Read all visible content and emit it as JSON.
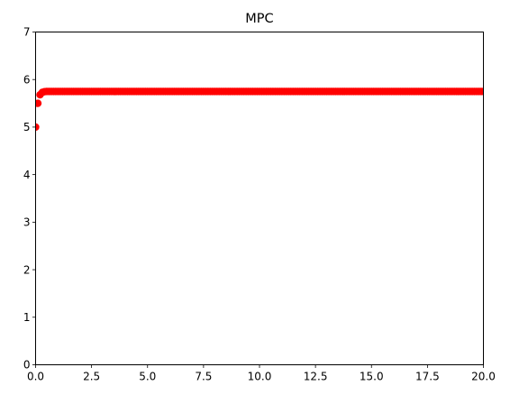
{
  "chart_data": {
    "type": "scatter",
    "title": "MPC",
    "xlabel": "",
    "ylabel": "",
    "xlim": [
      0,
      20
    ],
    "ylim": [
      0,
      7
    ],
    "x_ticks": [
      "0.0",
      "2.5",
      "5.0",
      "7.5",
      "10.0",
      "12.5",
      "15.0",
      "17.5",
      "20.0"
    ],
    "y_ticks": [
      "0",
      "1",
      "2",
      "3",
      "4",
      "5",
      "6",
      "7"
    ],
    "grid": false,
    "legend": "none",
    "marker_color": "#ff0000",
    "series": [
      {
        "x_start": 0,
        "x_step": 0.1,
        "x_end": 20,
        "y_initial": [
          5.0,
          5.5,
          5.68,
          5.73,
          5.745
        ],
        "y_steady": 5.75
      }
    ]
  }
}
